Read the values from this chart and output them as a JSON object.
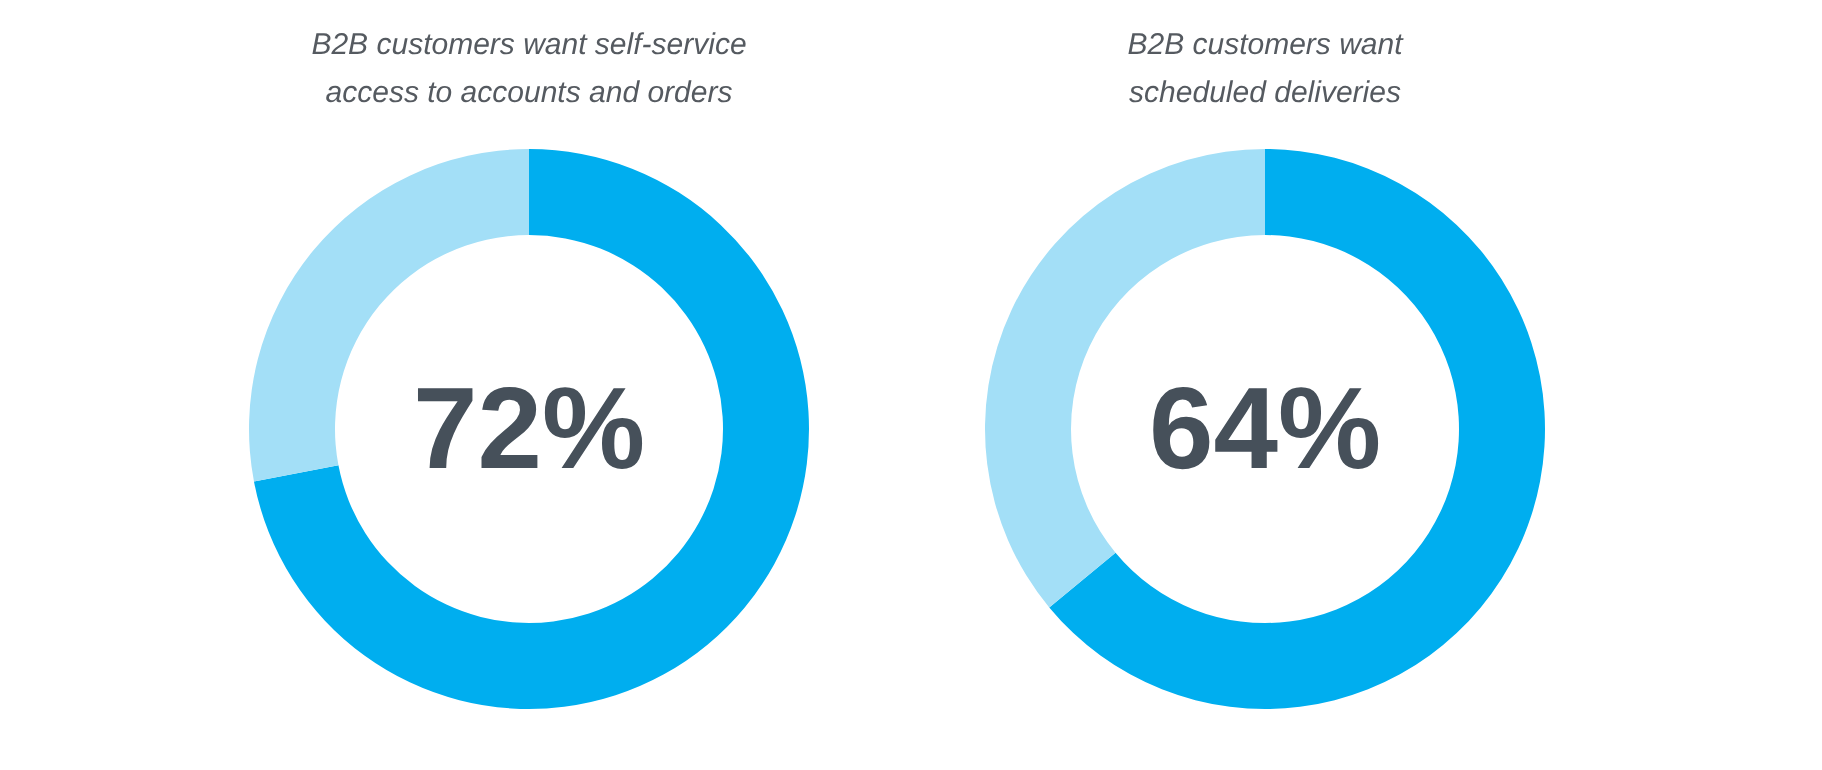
{
  "chart_data": [
    {
      "type": "donut",
      "title": "B2B customers want self-service\naccess to accounts and orders",
      "categories": [
        null,
        null
      ],
      "values": [
        72,
        28
      ],
      "colors": [
        "#00aeef",
        "#a3dff7"
      ],
      "value_labels": [
        "72%",
        null
      ]
    },
    {
      "type": "donut",
      "title": "B2B customers want\nscheduled deliveries",
      "categories": [
        null,
        null
      ],
      "values": [
        64,
        36
      ],
      "colors": [
        "#00aeef",
        "#a3dff7"
      ],
      "value_labels": [
        "64%",
        null
      ]
    }
  ]
}
